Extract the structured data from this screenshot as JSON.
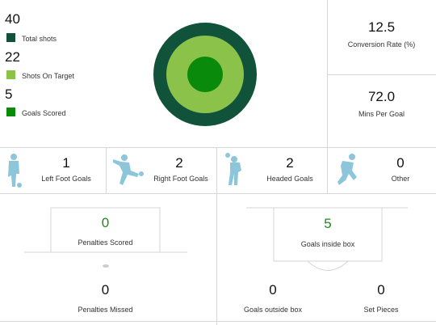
{
  "summary": {
    "total_shots": {
      "value": "40",
      "label": "Total shots",
      "color": "#11533a"
    },
    "on_target": {
      "value": "22",
      "label": "Shots On Target",
      "color": "#8bc34a"
    },
    "goals": {
      "value": "5",
      "label": "Goals Scored",
      "color": "#0a8a0a"
    }
  },
  "rates": {
    "conversion": {
      "value": "12.5",
      "label": "Conversion Rate (%)"
    },
    "mins_per_goal": {
      "value": "72.0",
      "label": "Mins Per Goal"
    }
  },
  "goal_types": [
    {
      "value": "1",
      "label": "Left Foot Goals",
      "icon": "left-foot-player-icon"
    },
    {
      "value": "2",
      "label": "Right Foot Goals",
      "icon": "right-foot-player-icon"
    },
    {
      "value": "2",
      "label": "Headed Goals",
      "icon": "header-player-icon"
    },
    {
      "value": "0",
      "label": "Other",
      "icon": "other-goal-player-icon"
    }
  ],
  "penalties": {
    "scored": {
      "value": "0",
      "label": "Penalties Scored"
    },
    "missed": {
      "value": "0",
      "label": "Penalties Missed"
    }
  },
  "box": {
    "inside": {
      "value": "5",
      "label": "Goals inside box"
    },
    "outside": {
      "value": "0",
      "label": "Goals outside box"
    },
    "set_pieces": {
      "value": "0",
      "label": "Set Pieces"
    }
  },
  "colors": {
    "player_icon": "#8dc6da",
    "highlight_green": "#1f8a1f",
    "divider": "#d6d6d6"
  }
}
